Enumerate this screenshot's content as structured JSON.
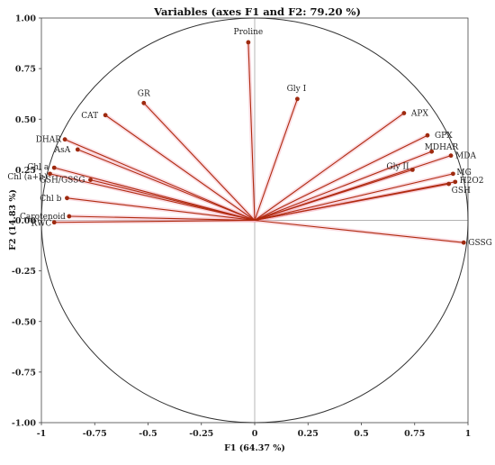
{
  "chart_data": {
    "type": "scatter",
    "title": "Variables (axes F1 and F2: 79.20 %)",
    "xlabel": "F1 (64.37 %)",
    "ylabel": "F2 (14.83 %)",
    "xlim": [
      -1,
      1
    ],
    "ylim": [
      -1,
      1
    ],
    "x_ticks": [
      "-1",
      "-0.75",
      "-0.5",
      "-0.25",
      "0",
      "0.25",
      "0.5",
      "0.75",
      "1"
    ],
    "y_ticks": [
      "1.00",
      "0.75",
      "0.50",
      "0.25",
      "0.00",
      "-0.25",
      "-0.50",
      "-0.75",
      "-1.00"
    ],
    "points": [
      {
        "label": "Proline",
        "x": -0.03,
        "y": 0.88
      },
      {
        "label": "Gly I",
        "x": 0.2,
        "y": 0.6
      },
      {
        "label": "GR",
        "x": -0.52,
        "y": 0.58
      },
      {
        "label": "CAT",
        "x": -0.7,
        "y": 0.52
      },
      {
        "label": "APX",
        "x": 0.7,
        "y": 0.53
      },
      {
        "label": "GPX",
        "x": 0.81,
        "y": 0.42
      },
      {
        "label": "MDHAR",
        "x": 0.83,
        "y": 0.34
      },
      {
        "label": "MDA",
        "x": 0.92,
        "y": 0.32
      },
      {
        "label": "Gly II",
        "x": 0.74,
        "y": 0.25
      },
      {
        "label": "MG",
        "x": 0.93,
        "y": 0.23
      },
      {
        "label": "H2O2",
        "x": 0.94,
        "y": 0.19
      },
      {
        "label": "GSH",
        "x": 0.91,
        "y": 0.18
      },
      {
        "label": "GSSG",
        "x": 0.98,
        "y": -0.11
      },
      {
        "label": "DHAR",
        "x": -0.89,
        "y": 0.4
      },
      {
        "label": "AsA",
        "x": -0.83,
        "y": 0.35
      },
      {
        "label": "Chl a",
        "x": -0.94,
        "y": 0.26
      },
      {
        "label": "Chl (a+b)",
        "x": -0.96,
        "y": 0.23
      },
      {
        "label": "GSH/GSSG",
        "x": -0.77,
        "y": 0.2
      },
      {
        "label": "Chl b",
        "x": -0.88,
        "y": 0.11
      },
      {
        "label": "Carotenoid",
        "x": -0.87,
        "y": 0.02
      },
      {
        "label": "RWC",
        "x": -0.94,
        "y": -0.01
      }
    ],
    "legend": "none",
    "grid": false
  }
}
